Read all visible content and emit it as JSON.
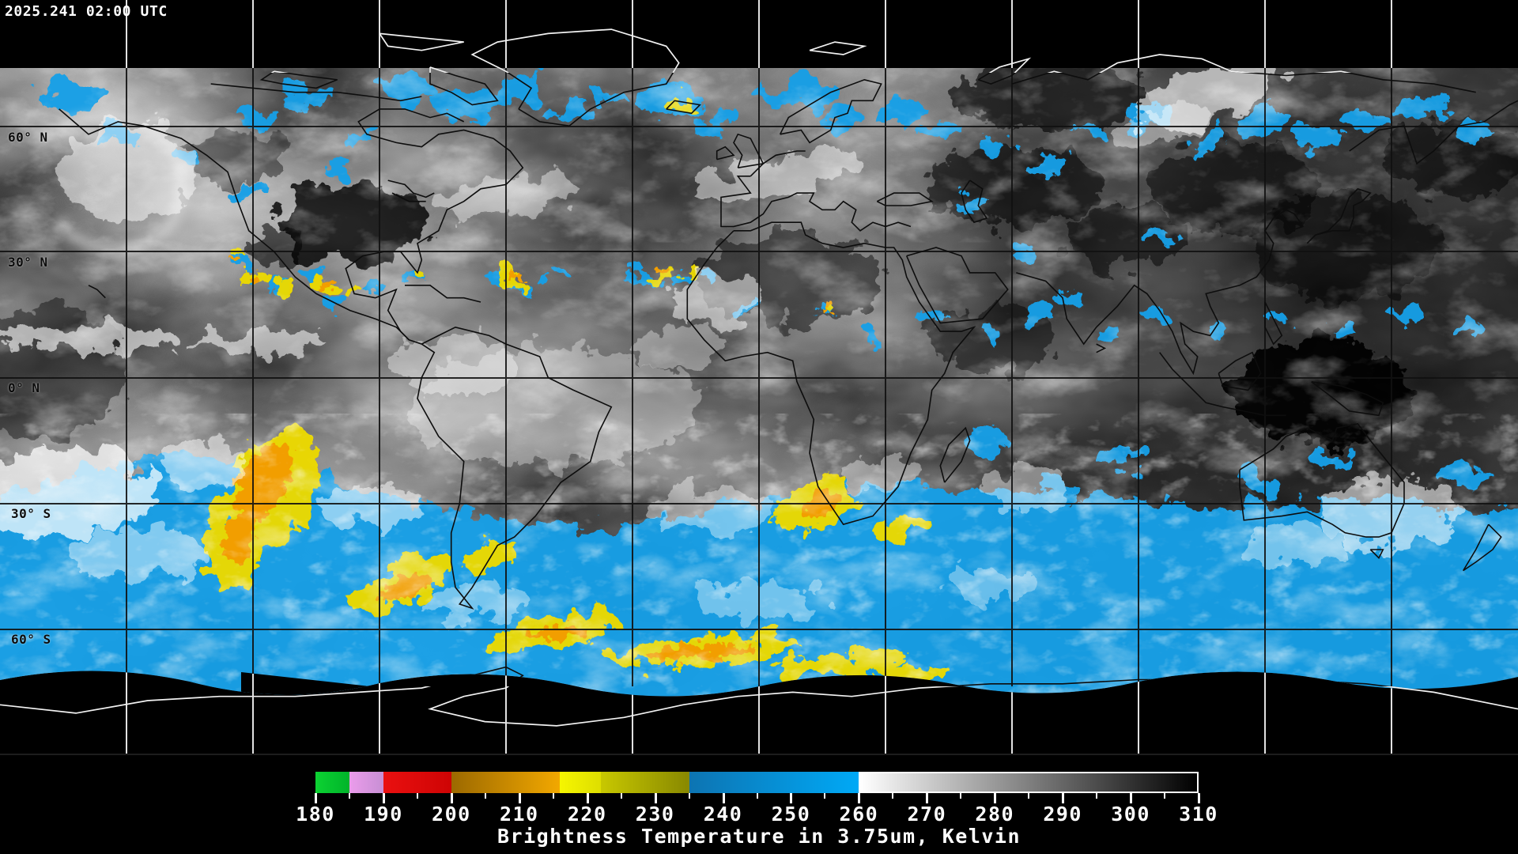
{
  "header": {
    "timestamp": "2025.241 02:00 UTC"
  },
  "map": {
    "lat_labels": [
      {
        "text": "60° N"
      },
      {
        "text": "30° N"
      },
      {
        "text": "0° N"
      },
      {
        "text": "30° S"
      },
      {
        "text": "60° S"
      }
    ]
  },
  "legend": {
    "caption": "Brightness Temperature in 3.75um, Kelvin",
    "range_min": 180,
    "range_max": 310,
    "major_tick_step": 10,
    "minor_tick_step": 5,
    "tick_labels": [
      "180",
      "190",
      "200",
      "210",
      "220",
      "230",
      "240",
      "250",
      "260",
      "270",
      "280",
      "290",
      "300",
      "310"
    ],
    "segments": [
      {
        "from": 180,
        "to": 185,
        "color_start": "#0cd232",
        "color_end": "#00b42a",
        "outlined": false
      },
      {
        "from": 185,
        "to": 190,
        "color_start": "#eb9ceb",
        "color_end": "#c78fd4",
        "outlined": false
      },
      {
        "from": 190,
        "to": 200,
        "color_start": "#ea1010",
        "color_end": "#ce0404",
        "outlined": false
      },
      {
        "from": 200,
        "to": 216,
        "color_start": "#9c6900",
        "color_end": "#f2a800",
        "outlined": false
      },
      {
        "from": 216,
        "to": 222,
        "color_start": "#f6f600",
        "color_end": "#dede00",
        "outlined": false
      },
      {
        "from": 222,
        "to": 235,
        "color_start": "#c8c800",
        "color_end": "#888800",
        "outlined": false
      },
      {
        "from": 235,
        "to": 260,
        "color_start": "#0d74b2",
        "color_end": "#00a9f6",
        "outlined": false
      },
      {
        "from": 260,
        "to": 310,
        "color_start": "#ffffff",
        "color_end": "#000000",
        "outlined": true
      }
    ]
  }
}
